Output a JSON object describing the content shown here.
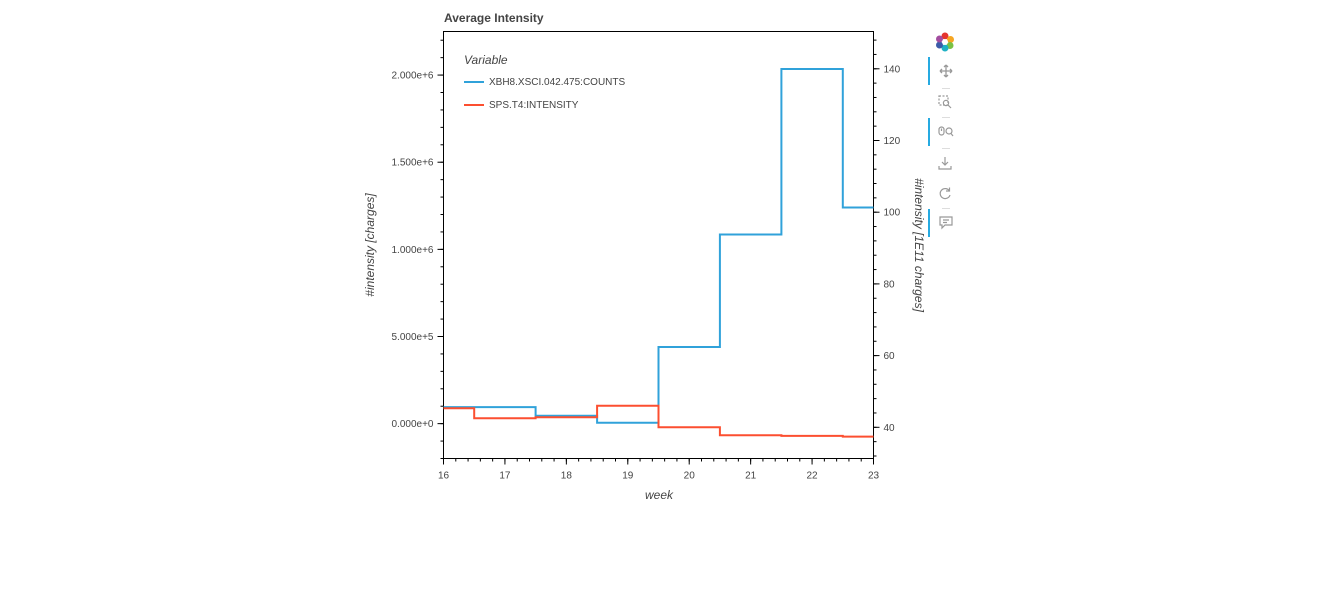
{
  "chart_data": {
    "type": "line",
    "step": true,
    "title": "Average Intensity",
    "xlabel": "week",
    "ylabel_left": "#intensity [charges]",
    "ylabel_right": "#intensity [1E11 charges]",
    "xlim": [
      16,
      23
    ],
    "ylim_left": [
      -200000,
      2250000
    ],
    "ylim_right": [
      31.3,
      150.4
    ],
    "x_ticks": [
      "16",
      "17",
      "18",
      "19",
      "20",
      "21",
      "22",
      "23"
    ],
    "y_left_ticks": [
      "0.000e+0",
      "5.000e+5",
      "1.000e+6",
      "1.500e+6",
      "2.000e+6"
    ],
    "y_right_ticks": [
      "40",
      "60",
      "80",
      "100",
      "120",
      "140"
    ],
    "legend_title": "Variable",
    "legend_position": "top-left",
    "grid": false,
    "x": [
      16,
      17,
      18,
      19,
      20,
      21,
      22,
      23
    ],
    "series": [
      {
        "name": "XBH8.XSCI.042.475:COUNTS",
        "axis": "left",
        "color": "#30a2da",
        "values": [
          95000,
          95000,
          45000,
          5000,
          440000,
          1085000,
          2035000,
          1240000
        ]
      },
      {
        "name": "SPS.T4:INTENSITY",
        "axis": "right",
        "color": "#fc4f30",
        "values": [
          45.3,
          42.5,
          42.8,
          46.0,
          40.0,
          37.8,
          37.6,
          37.4
        ]
      }
    ]
  },
  "toolbar": {
    "logo_icon": "bokeh-logo-icon",
    "tools": [
      "pan-icon",
      "box-zoom-icon",
      "wheel-zoom-icon",
      "save-icon",
      "reset-icon",
      "hover-icon"
    ]
  }
}
